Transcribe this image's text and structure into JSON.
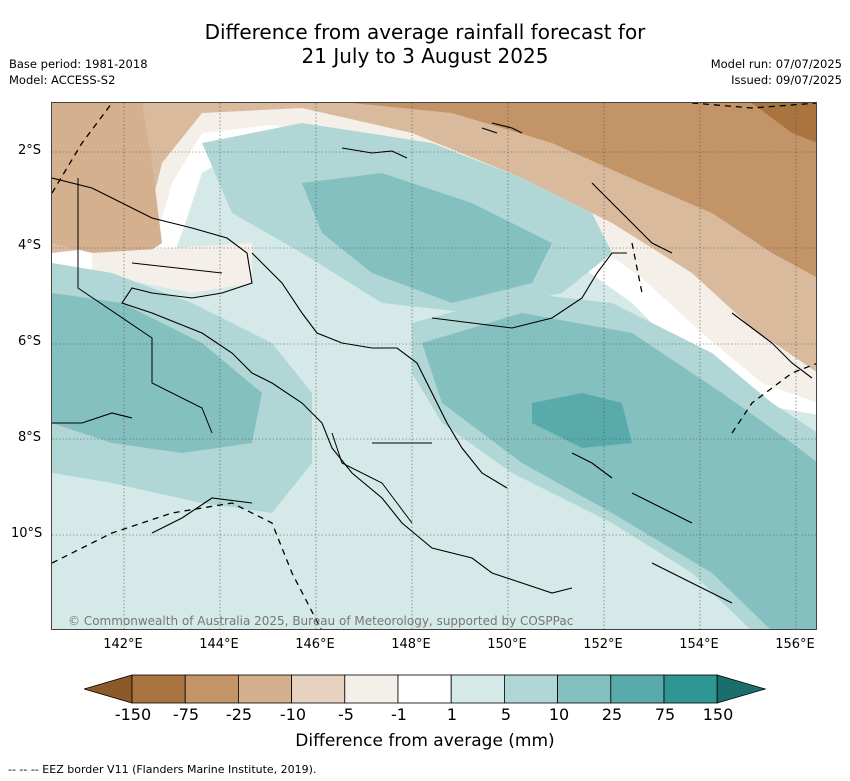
{
  "title": {
    "line1": "Difference from average rainfall forecast for",
    "line2": "21 July to 3 August 2025"
  },
  "meta_left": {
    "base_period": "Base period: 1981-2018",
    "model": "Model: ACCESS-S2"
  },
  "meta_right": {
    "model_run": "Model run: 07/07/2025",
    "issued": "Issued: 09/07/2025"
  },
  "lat_labels": [
    "2°S",
    "4°S",
    "6°S",
    "8°S",
    "10°S"
  ],
  "lon_labels": [
    "142°E",
    "144°E",
    "146°E",
    "148°E",
    "150°E",
    "152°E",
    "154°E",
    "156°E"
  ],
  "copyright": "© Commonwealth of Australia 2025, Bureau of Meteorology, supported by COSPPac",
  "colorbar": {
    "ticks": [
      "-150",
      "-75",
      "-25",
      "-10",
      "-5",
      "-1",
      "1",
      "5",
      "10",
      "25",
      "75",
      "150"
    ],
    "colors": [
      "#8c5a2a",
      "#a97440",
      "#c29467",
      "#d4b08e",
      "#e7d2bf",
      "#f4efe9",
      "#ffffff",
      "#d5e9e8",
      "#b0d7d6",
      "#84c0bf",
      "#59abab",
      "#2e9794",
      "#1a6e6b"
    ],
    "title": "Difference from average (mm)"
  },
  "footer": "--  --  -- EEZ border V11 (Flanders Marine Institute, 2019)."
}
